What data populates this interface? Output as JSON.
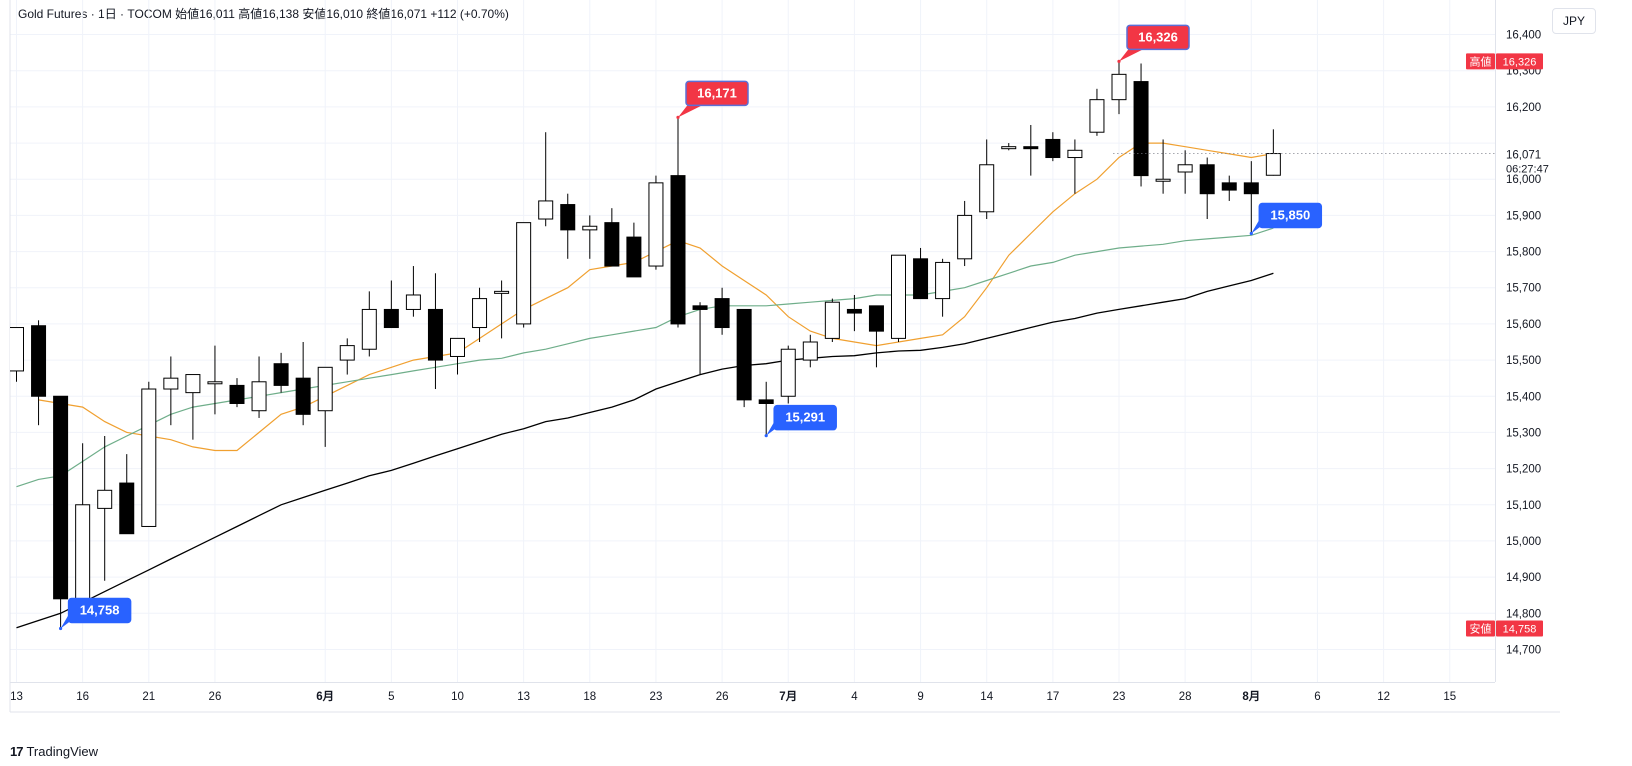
{
  "header": {
    "text": "Gold Futures · 1日 · TOCOM  始値16,011  高値16,138  安値16,010  終値16,071  +112 (+0.70%)"
  },
  "currency_label": "JPY",
  "branding": {
    "logo_mark": "17",
    "name": "TradingView"
  },
  "colors": {
    "up_fill": "#ffffff",
    "down_fill": "#000000",
    "candle_border": "#000000",
    "ma_short": "#f0a030",
    "ma_mid": "#6fae8a",
    "ma_long": "#000000",
    "high_marker": "#f23645",
    "low_marker": "#2962ff"
  },
  "chart_data": {
    "type": "candlestick",
    "title": "Gold Futures · 1日 · TOCOM",
    "currency": "JPY",
    "ylim": [
      14610,
      16490
    ],
    "y_ticks": [
      14700,
      14800,
      14900,
      15000,
      15100,
      15200,
      15300,
      15400,
      15500,
      15600,
      15700,
      15800,
      15900,
      16000,
      16100,
      16200,
      16300,
      16400
    ],
    "y_tick_labels": [
      "14,700",
      "14,800",
      "14,900",
      "15,000",
      "15,100",
      "15,200",
      "15,300",
      "15,400",
      "15,500",
      "15,600",
      "15,700",
      "15,800",
      "15,900",
      "16,000",
      "16,100",
      "16,200",
      "16,300",
      "16,400"
    ],
    "x_ticks": [
      {
        "i": 0,
        "label": "13"
      },
      {
        "i": 3,
        "label": "16"
      },
      {
        "i": 6,
        "label": "21"
      },
      {
        "i": 9,
        "label": "26"
      },
      {
        "i": 14,
        "label": "6月"
      },
      {
        "i": 17,
        "label": "5"
      },
      {
        "i": 20,
        "label": "10"
      },
      {
        "i": 23,
        "label": "13"
      },
      {
        "i": 26,
        "label": "18"
      },
      {
        "i": 29,
        "label": "23"
      },
      {
        "i": 32,
        "label": "26"
      },
      {
        "i": 35,
        "label": "7月"
      },
      {
        "i": 38,
        "label": "4"
      },
      {
        "i": 41,
        "label": "9"
      },
      {
        "i": 44,
        "label": "14"
      },
      {
        "i": 47,
        "label": "17"
      },
      {
        "i": 50,
        "label": "23"
      },
      {
        "i": 53,
        "label": "28"
      },
      {
        "i": 56,
        "label": "8月"
      },
      {
        "i": 59,
        "label": "6"
      },
      {
        "i": 62,
        "label": "12"
      },
      {
        "i": 65,
        "label": "15"
      }
    ],
    "candles": [
      {
        "o": 15470,
        "h": 15590,
        "l": 15440,
        "c": 15590
      },
      {
        "o": 15595,
        "h": 15610,
        "l": 15320,
        "c": 15400
      },
      {
        "o": 15400,
        "h": 15400,
        "l": 14758,
        "c": 14840
      },
      {
        "o": 14840,
        "h": 15270,
        "l": 14840,
        "c": 15100
      },
      {
        "o": 15090,
        "h": 15290,
        "l": 14890,
        "c": 15140
      },
      {
        "o": 15160,
        "h": 15240,
        "l": 15020,
        "c": 15020
      },
      {
        "o": 15040,
        "h": 15440,
        "l": 15040,
        "c": 15420
      },
      {
        "o": 15420,
        "h": 15510,
        "l": 15320,
        "c": 15450
      },
      {
        "o": 15410,
        "h": 15460,
        "l": 15280,
        "c": 15460
      },
      {
        "o": 15440,
        "h": 15540,
        "l": 15350,
        "c": 15440
      },
      {
        "o": 15430,
        "h": 15450,
        "l": 15370,
        "c": 15380
      },
      {
        "o": 15360,
        "h": 15510,
        "l": 15340,
        "c": 15440
      },
      {
        "o": 15490,
        "h": 15520,
        "l": 15410,
        "c": 15430
      },
      {
        "o": 15450,
        "h": 15550,
        "l": 15320,
        "c": 15350
      },
      {
        "o": 15360,
        "h": 15480,
        "l": 15260,
        "c": 15480
      },
      {
        "o": 15500,
        "h": 15560,
        "l": 15460,
        "c": 15540
      },
      {
        "o": 15530,
        "h": 15690,
        "l": 15510,
        "c": 15640
      },
      {
        "o": 15640,
        "h": 15720,
        "l": 15590,
        "c": 15590
      },
      {
        "o": 15640,
        "h": 15760,
        "l": 15620,
        "c": 15680
      },
      {
        "o": 15640,
        "h": 15740,
        "l": 15420,
        "c": 15500
      },
      {
        "o": 15510,
        "h": 15560,
        "l": 15460,
        "c": 15560
      },
      {
        "o": 15590,
        "h": 15700,
        "l": 15550,
        "c": 15670
      },
      {
        "o": 15690,
        "h": 15720,
        "l": 15560,
        "c": 15690
      },
      {
        "o": 15600,
        "h": 15880,
        "l": 15590,
        "c": 15880
      },
      {
        "o": 15890,
        "h": 16130,
        "l": 15870,
        "c": 15940
      },
      {
        "o": 15930,
        "h": 15960,
        "l": 15780,
        "c": 15860
      },
      {
        "o": 15860,
        "h": 15900,
        "l": 15780,
        "c": 15870
      },
      {
        "o": 15880,
        "h": 15920,
        "l": 15760,
        "c": 15760
      },
      {
        "o": 15840,
        "h": 15880,
        "l": 15730,
        "c": 15730
      },
      {
        "o": 15760,
        "h": 16010,
        "l": 15750,
        "c": 15990
      },
      {
        "o": 16010,
        "h": 16171,
        "l": 15590,
        "c": 15600
      },
      {
        "o": 15650,
        "h": 15660,
        "l": 15460,
        "c": 15640
      },
      {
        "o": 15670,
        "h": 15700,
        "l": 15570,
        "c": 15590
      },
      {
        "o": 15640,
        "h": 15640,
        "l": 15370,
        "c": 15390
      },
      {
        "o": 15390,
        "h": 15440,
        "l": 15291,
        "c": 15380
      },
      {
        "o": 15400,
        "h": 15540,
        "l": 15380,
        "c": 15530
      },
      {
        "o": 15500,
        "h": 15570,
        "l": 15480,
        "c": 15550
      },
      {
        "o": 15560,
        "h": 15670,
        "l": 15550,
        "c": 15660
      },
      {
        "o": 15640,
        "h": 15680,
        "l": 15580,
        "c": 15630
      },
      {
        "o": 15650,
        "h": 15650,
        "l": 15480,
        "c": 15580
      },
      {
        "o": 15560,
        "h": 15790,
        "l": 15550,
        "c": 15790
      },
      {
        "o": 15780,
        "h": 15810,
        "l": 15680,
        "c": 15670
      },
      {
        "o": 15670,
        "h": 15780,
        "l": 15620,
        "c": 15770
      },
      {
        "o": 15780,
        "h": 15940,
        "l": 15760,
        "c": 15900
      },
      {
        "o": 15910,
        "h": 16110,
        "l": 15890,
        "c": 16040
      },
      {
        "o": 16085,
        "h": 16100,
        "l": 16080,
        "c": 16090
      },
      {
        "o": 16090,
        "h": 16150,
        "l": 16010,
        "c": 16085
      },
      {
        "o": 16110,
        "h": 16130,
        "l": 16050,
        "c": 16060
      },
      {
        "o": 16060,
        "h": 16110,
        "l": 15960,
        "c": 16080
      },
      {
        "o": 16130,
        "h": 16250,
        "l": 16120,
        "c": 16220
      },
      {
        "o": 16220,
        "h": 16326,
        "l": 16180,
        "c": 16290
      },
      {
        "o": 16270,
        "h": 16320,
        "l": 15980,
        "c": 16010
      },
      {
        "o": 16000,
        "h": 16110,
        "l": 15960,
        "c": 16000
      },
      {
        "o": 16020,
        "h": 16080,
        "l": 15960,
        "c": 16040
      },
      {
        "o": 16040,
        "h": 16060,
        "l": 15890,
        "c": 15960
      },
      {
        "o": 15990,
        "h": 16010,
        "l": 15940,
        "c": 15970
      },
      {
        "o": 15990,
        "h": 16050,
        "l": 15850,
        "c": 15960
      },
      {
        "o": 16011,
        "h": 16138,
        "l": 16010,
        "c": 16071
      }
    ],
    "series": [
      {
        "name": "",
        "kind": "ma_short",
        "points": [
          [
            1,
            15390
          ],
          [
            2,
            15380
          ],
          [
            3,
            15370
          ],
          [
            4,
            15330
          ],
          [
            5,
            15300
          ],
          [
            6,
            15290
          ],
          [
            7,
            15280
          ],
          [
            8,
            15260
          ],
          [
            9,
            15250
          ],
          [
            10,
            15250
          ],
          [
            11,
            15300
          ],
          [
            12,
            15350
          ],
          [
            13,
            15370
          ],
          [
            14,
            15400
          ],
          [
            15,
            15430
          ],
          [
            16,
            15460
          ],
          [
            17,
            15480
          ],
          [
            18,
            15500
          ],
          [
            19,
            15510
          ],
          [
            20,
            15520
          ],
          [
            21,
            15560
          ],
          [
            22,
            15600
          ],
          [
            23,
            15640
          ],
          [
            24,
            15670
          ],
          [
            25,
            15700
          ],
          [
            26,
            15750
          ],
          [
            27,
            15760
          ],
          [
            28,
            15770
          ],
          [
            29,
            15800
          ],
          [
            30,
            15830
          ],
          [
            31,
            15810
          ],
          [
            32,
            15760
          ],
          [
            33,
            15720
          ],
          [
            34,
            15680
          ],
          [
            35,
            15620
          ],
          [
            36,
            15580
          ],
          [
            37,
            15560
          ],
          [
            38,
            15550
          ],
          [
            39,
            15540
          ],
          [
            40,
            15550
          ],
          [
            41,
            15560
          ],
          [
            42,
            15570
          ],
          [
            43,
            15620
          ],
          [
            44,
            15700
          ],
          [
            45,
            15790
          ],
          [
            46,
            15850
          ],
          [
            47,
            15910
          ],
          [
            48,
            15960
          ],
          [
            49,
            16000
          ],
          [
            50,
            16060
          ],
          [
            51,
            16100
          ],
          [
            52,
            16100
          ],
          [
            53,
            16090
          ],
          [
            54,
            16080
          ],
          [
            55,
            16070
          ],
          [
            56,
            16060
          ],
          [
            57,
            16071
          ]
        ]
      },
      {
        "name": "",
        "kind": "ma_mid",
        "points": [
          [
            0,
            15150
          ],
          [
            1,
            15170
          ],
          [
            2,
            15180
          ],
          [
            3,
            15220
          ],
          [
            4,
            15260
          ],
          [
            5,
            15290
          ],
          [
            6,
            15320
          ],
          [
            7,
            15350
          ],
          [
            8,
            15370
          ],
          [
            9,
            15380
          ],
          [
            10,
            15390
          ],
          [
            11,
            15400
          ],
          [
            12,
            15410
          ],
          [
            13,
            15420
          ],
          [
            14,
            15430
          ],
          [
            15,
            15440
          ],
          [
            16,
            15450
          ],
          [
            17,
            15460
          ],
          [
            18,
            15470
          ],
          [
            19,
            15480
          ],
          [
            20,
            15490
          ],
          [
            21,
            15500
          ],
          [
            22,
            15505
          ],
          [
            23,
            15520
          ],
          [
            24,
            15530
          ],
          [
            25,
            15545
          ],
          [
            26,
            15560
          ],
          [
            27,
            15570
          ],
          [
            28,
            15580
          ],
          [
            29,
            15590
          ],
          [
            30,
            15620
          ],
          [
            31,
            15640
          ],
          [
            32,
            15650
          ],
          [
            33,
            15650
          ],
          [
            34,
            15650
          ],
          [
            35,
            15655
          ],
          [
            36,
            15660
          ],
          [
            37,
            15665
          ],
          [
            38,
            15670
          ],
          [
            39,
            15680
          ],
          [
            40,
            15680
          ],
          [
            41,
            15680
          ],
          [
            42,
            15690
          ],
          [
            43,
            15700
          ],
          [
            44,
            15720
          ],
          [
            45,
            15740
          ],
          [
            46,
            15760
          ],
          [
            47,
            15770
          ],
          [
            48,
            15790
          ],
          [
            49,
            15800
          ],
          [
            50,
            15810
          ],
          [
            51,
            15815
          ],
          [
            52,
            15820
          ],
          [
            53,
            15830
          ],
          [
            54,
            15835
          ],
          [
            55,
            15840
          ],
          [
            56,
            15845
          ],
          [
            57,
            15865
          ]
        ]
      },
      {
        "name": "",
        "kind": "ma_long",
        "points": [
          [
            0,
            14760
          ],
          [
            1,
            14780
          ],
          [
            2,
            14800
          ],
          [
            3,
            14830
          ],
          [
            4,
            14860
          ],
          [
            5,
            14890
          ],
          [
            6,
            14920
          ],
          [
            7,
            14950
          ],
          [
            8,
            14980
          ],
          [
            9,
            15010
          ],
          [
            10,
            15040
          ],
          [
            11,
            15070
          ],
          [
            12,
            15100
          ],
          [
            13,
            15120
          ],
          [
            14,
            15140
          ],
          [
            15,
            15160
          ],
          [
            16,
            15180
          ],
          [
            17,
            15195
          ],
          [
            18,
            15215
          ],
          [
            19,
            15235
          ],
          [
            20,
            15255
          ],
          [
            21,
            15275
          ],
          [
            22,
            15295
          ],
          [
            23,
            15310
          ],
          [
            24,
            15330
          ],
          [
            25,
            15340
          ],
          [
            26,
            15355
          ],
          [
            27,
            15370
          ],
          [
            28,
            15390
          ],
          [
            29,
            15420
          ],
          [
            30,
            15440
          ],
          [
            31,
            15460
          ],
          [
            32,
            15475
          ],
          [
            33,
            15485
          ],
          [
            34,
            15490
          ],
          [
            35,
            15500
          ],
          [
            36,
            15505
          ],
          [
            37,
            15510
          ],
          [
            38,
            15512
          ],
          [
            39,
            15520
          ],
          [
            40,
            15525
          ],
          [
            41,
            15527
          ],
          [
            42,
            15535
          ],
          [
            43,
            15545
          ],
          [
            44,
            15560
          ],
          [
            45,
            15575
          ],
          [
            46,
            15590
          ],
          [
            47,
            15605
          ],
          [
            48,
            15615
          ],
          [
            49,
            15630
          ],
          [
            50,
            15640
          ],
          [
            51,
            15650
          ],
          [
            52,
            15660
          ],
          [
            53,
            15670
          ],
          [
            54,
            15690
          ],
          [
            55,
            15705
          ],
          [
            56,
            15720
          ],
          [
            57,
            15740
          ]
        ]
      }
    ],
    "callouts": [
      {
        "i": 2,
        "value": 14758,
        "label": "14,758",
        "kind": "low"
      },
      {
        "i": 30,
        "value": 16171,
        "label": "16,171",
        "kind": "high"
      },
      {
        "i": 34,
        "value": 15291,
        "label": "15,291",
        "kind": "low"
      },
      {
        "i": 50,
        "value": 16326,
        "label": "16,326",
        "kind": "high"
      },
      {
        "i": 56,
        "value": 15850,
        "label": "15,850",
        "kind": "low"
      }
    ],
    "axis_badges": [
      {
        "value": 16326,
        "tag": "高値",
        "label": "16,326",
        "kind": "high"
      },
      {
        "value": 14758,
        "tag": "安値",
        "label": "14,758",
        "kind": "low"
      }
    ],
    "last_price": {
      "value": 16071,
      "label": "16,071",
      "countdown": "06:27:47"
    }
  }
}
